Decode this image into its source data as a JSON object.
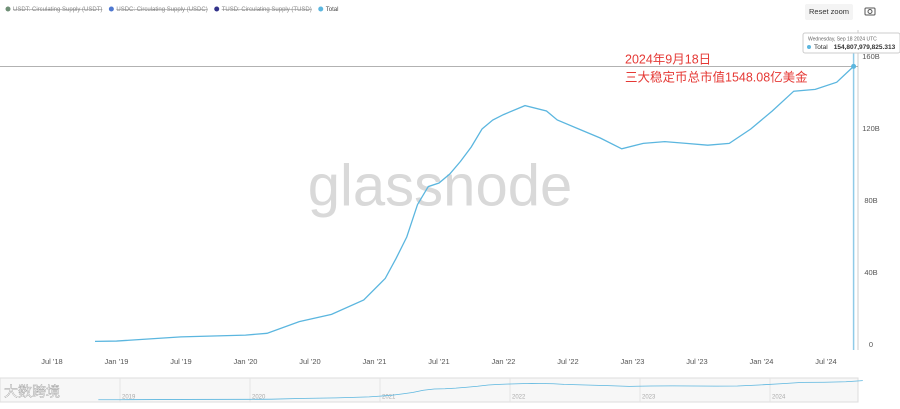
{
  "chart_data": {
    "type": "line",
    "legend": [
      {
        "name": "USDT: Circulating Supply (USDT)",
        "color": "#6f8f76",
        "hidden": true
      },
      {
        "name": "USDC: Circulating Supply (USDC)",
        "color": "#4f78d0",
        "hidden": true
      },
      {
        "name": "TUSD: Circulating Supply (TUSD)",
        "color": "#33338a",
        "hidden": true
      },
      {
        "name": "Total",
        "color": "#5bb6df",
        "hidden": false
      }
    ],
    "x": [
      "2018-11",
      "2019-01",
      "2019-07",
      "2020-01",
      "2020-03",
      "2020-06",
      "2020-09",
      "2020-12",
      "2021-02",
      "2021-03",
      "2021-04",
      "2021-05",
      "2021-06",
      "2021-07",
      "2021-08",
      "2021-09",
      "2021-10",
      "2021-11",
      "2021-12",
      "2022-01",
      "2022-03",
      "2022-05",
      "2022-06",
      "2022-08",
      "2022-10",
      "2022-12",
      "2023-02",
      "2023-04",
      "2023-06",
      "2023-08",
      "2023-10",
      "2023-12",
      "2024-02",
      "2024-04",
      "2024-06",
      "2024-08",
      "2024-09-18"
    ],
    "series": [
      {
        "name": "Total",
        "color": "#5bb6df",
        "values": [
          2000000000,
          2200000000,
          4500000000,
          5500000000,
          6500000000,
          13000000000,
          17000000000,
          25000000000,
          37000000000,
          48000000000,
          60000000000,
          78000000000,
          88000000000,
          90000000000,
          95000000000,
          102000000000,
          110000000000,
          120000000000,
          125000000000,
          128000000000,
          133000000000,
          130000000000,
          125000000000,
          120000000000,
          115000000000,
          109000000000,
          112000000000,
          113000000000,
          112000000000,
          111000000000,
          112000000000,
          120000000000,
          130000000000,
          141000000000,
          142000000000,
          146000000000,
          154807979825.313
        ]
      }
    ],
    "xticks": [
      {
        "value": "2018-07",
        "label": "Jul '18"
      },
      {
        "value": "2019-01",
        "label": "Jan '19"
      },
      {
        "value": "2019-07",
        "label": "Jul '19"
      },
      {
        "value": "2020-01",
        "label": "Jan '20"
      },
      {
        "value": "2020-07",
        "label": "Jul '20"
      },
      {
        "value": "2021-01",
        "label": "Jan '21"
      },
      {
        "value": "2021-07",
        "label": "Jul '21"
      },
      {
        "value": "2022-01",
        "label": "Jan '22"
      },
      {
        "value": "2022-07",
        "label": "Jul '22"
      },
      {
        "value": "2023-01",
        "label": "Jan '23"
      },
      {
        "value": "2023-07",
        "label": "Jul '23"
      },
      {
        "value": "2024-01",
        "label": "Jan '24"
      },
      {
        "value": "2024-07",
        "label": "Jul '24"
      }
    ],
    "ylim": [
      0,
      160000000000
    ],
    "yticks": [
      0,
      {
        "value": 40000000000,
        "label": "40B"
      },
      {
        "value": 80000000000,
        "label": "80B"
      },
      {
        "value": 120000000000,
        "label": "120B"
      },
      {
        "value": 160000000000,
        "label": "160B"
      }
    ],
    "grid": false,
    "navigator_ticks": [
      {
        "value": "2019-01",
        "label": "2019"
      },
      {
        "value": "2020-01",
        "label": "2020"
      },
      {
        "value": "2021-01",
        "label": "2021"
      },
      {
        "value": "2022-01",
        "label": "2022"
      },
      {
        "value": "2023-01",
        "label": "2023"
      },
      {
        "value": "2024-01",
        "label": "2024"
      }
    ],
    "tooltip": {
      "date": "Wednesday, Sep 18 2024 UTC",
      "series": "Total",
      "value": {
        "value": 154807979825.313,
        "label": "154,807,979,825.313"
      }
    },
    "annotation": [
      "2024年9月18日",
      "三大稳定币总市值1548.08亿美金"
    ],
    "watermark": "glassnode",
    "corner_watermark": "大数跨境",
    "reset_button": "Reset zoom"
  }
}
